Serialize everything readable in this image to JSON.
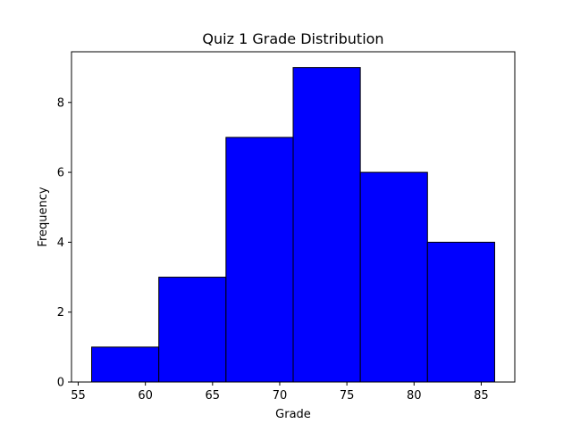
{
  "chart_data": {
    "type": "bar",
    "title": "Quiz 1 Grade Distribution",
    "xlabel": "Grade",
    "ylabel": "Frequency",
    "bins": [
      {
        "start": 56,
        "end": 61,
        "value": 1
      },
      {
        "start": 61,
        "end": 66,
        "value": 3
      },
      {
        "start": 66,
        "end": 71,
        "value": 7
      },
      {
        "start": 71,
        "end": 76,
        "value": 9
      },
      {
        "start": 76,
        "end": 81,
        "value": 6
      },
      {
        "start": 81,
        "end": 86,
        "value": 4
      }
    ],
    "xlim": [
      54.5,
      87.5
    ],
    "ylim": [
      0,
      9.45
    ],
    "xticks": [
      55,
      60,
      65,
      70,
      75,
      80,
      85
    ],
    "yticks": [
      0,
      2,
      4,
      6,
      8
    ],
    "bar_color": "#0000ff",
    "edge_color": "#000000",
    "grid": false,
    "legend": "none"
  }
}
